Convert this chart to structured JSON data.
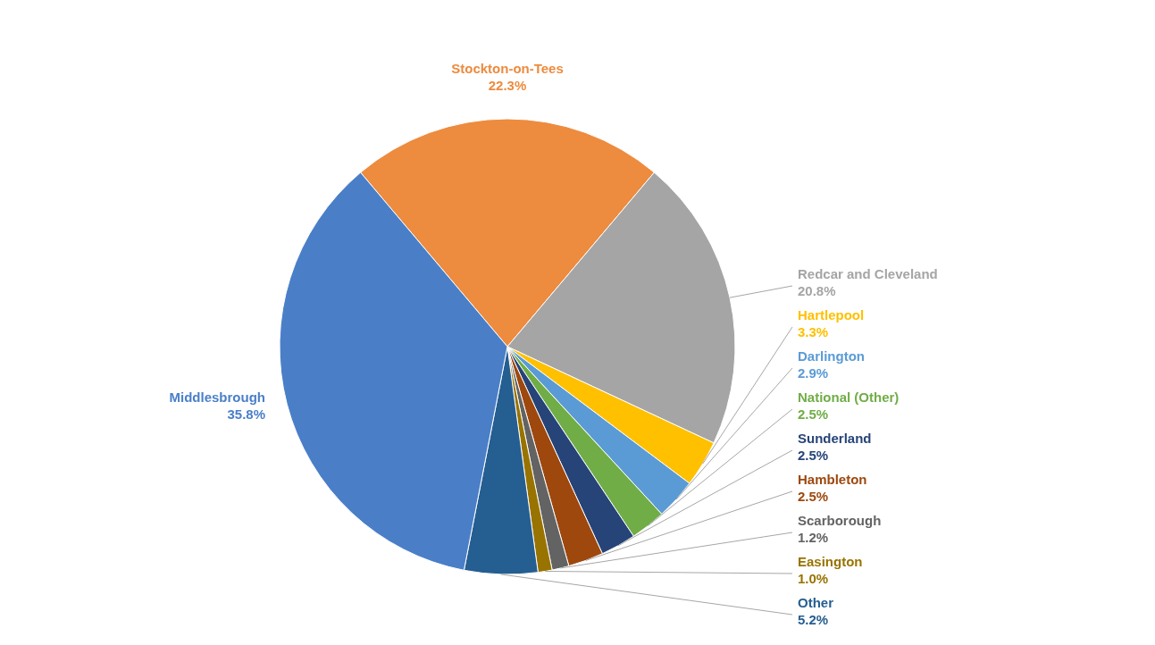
{
  "chart_data": {
    "type": "pie",
    "categories": [
      "Stockton-on-Tees",
      "Redcar and Cleveland",
      "Hartlepool",
      "Darlington",
      "National (Other)",
      "Sunderland",
      "Hambleton",
      "Scarborough",
      "Easington",
      "Other",
      "Middlesbrough"
    ],
    "values": [
      22.3,
      20.8,
      3.3,
      2.9,
      2.5,
      2.5,
      2.5,
      1.2,
      1.0,
      5.2,
      35.8
    ],
    "value_labels": [
      "22.3%",
      "20.8%",
      "3.3%",
      "2.9%",
      "2.5%",
      "2.5%",
      "2.5%",
      "1.2%",
      "1.0%",
      "5.2%",
      "35.8%"
    ],
    "colors": [
      "#ed8b3e",
      "#a5a5a5",
      "#ffc000",
      "#5b9bd5",
      "#70ad47",
      "#264478",
      "#9e480e",
      "#636363",
      "#997300",
      "#255e91",
      "#4a7fc8"
    ]
  }
}
